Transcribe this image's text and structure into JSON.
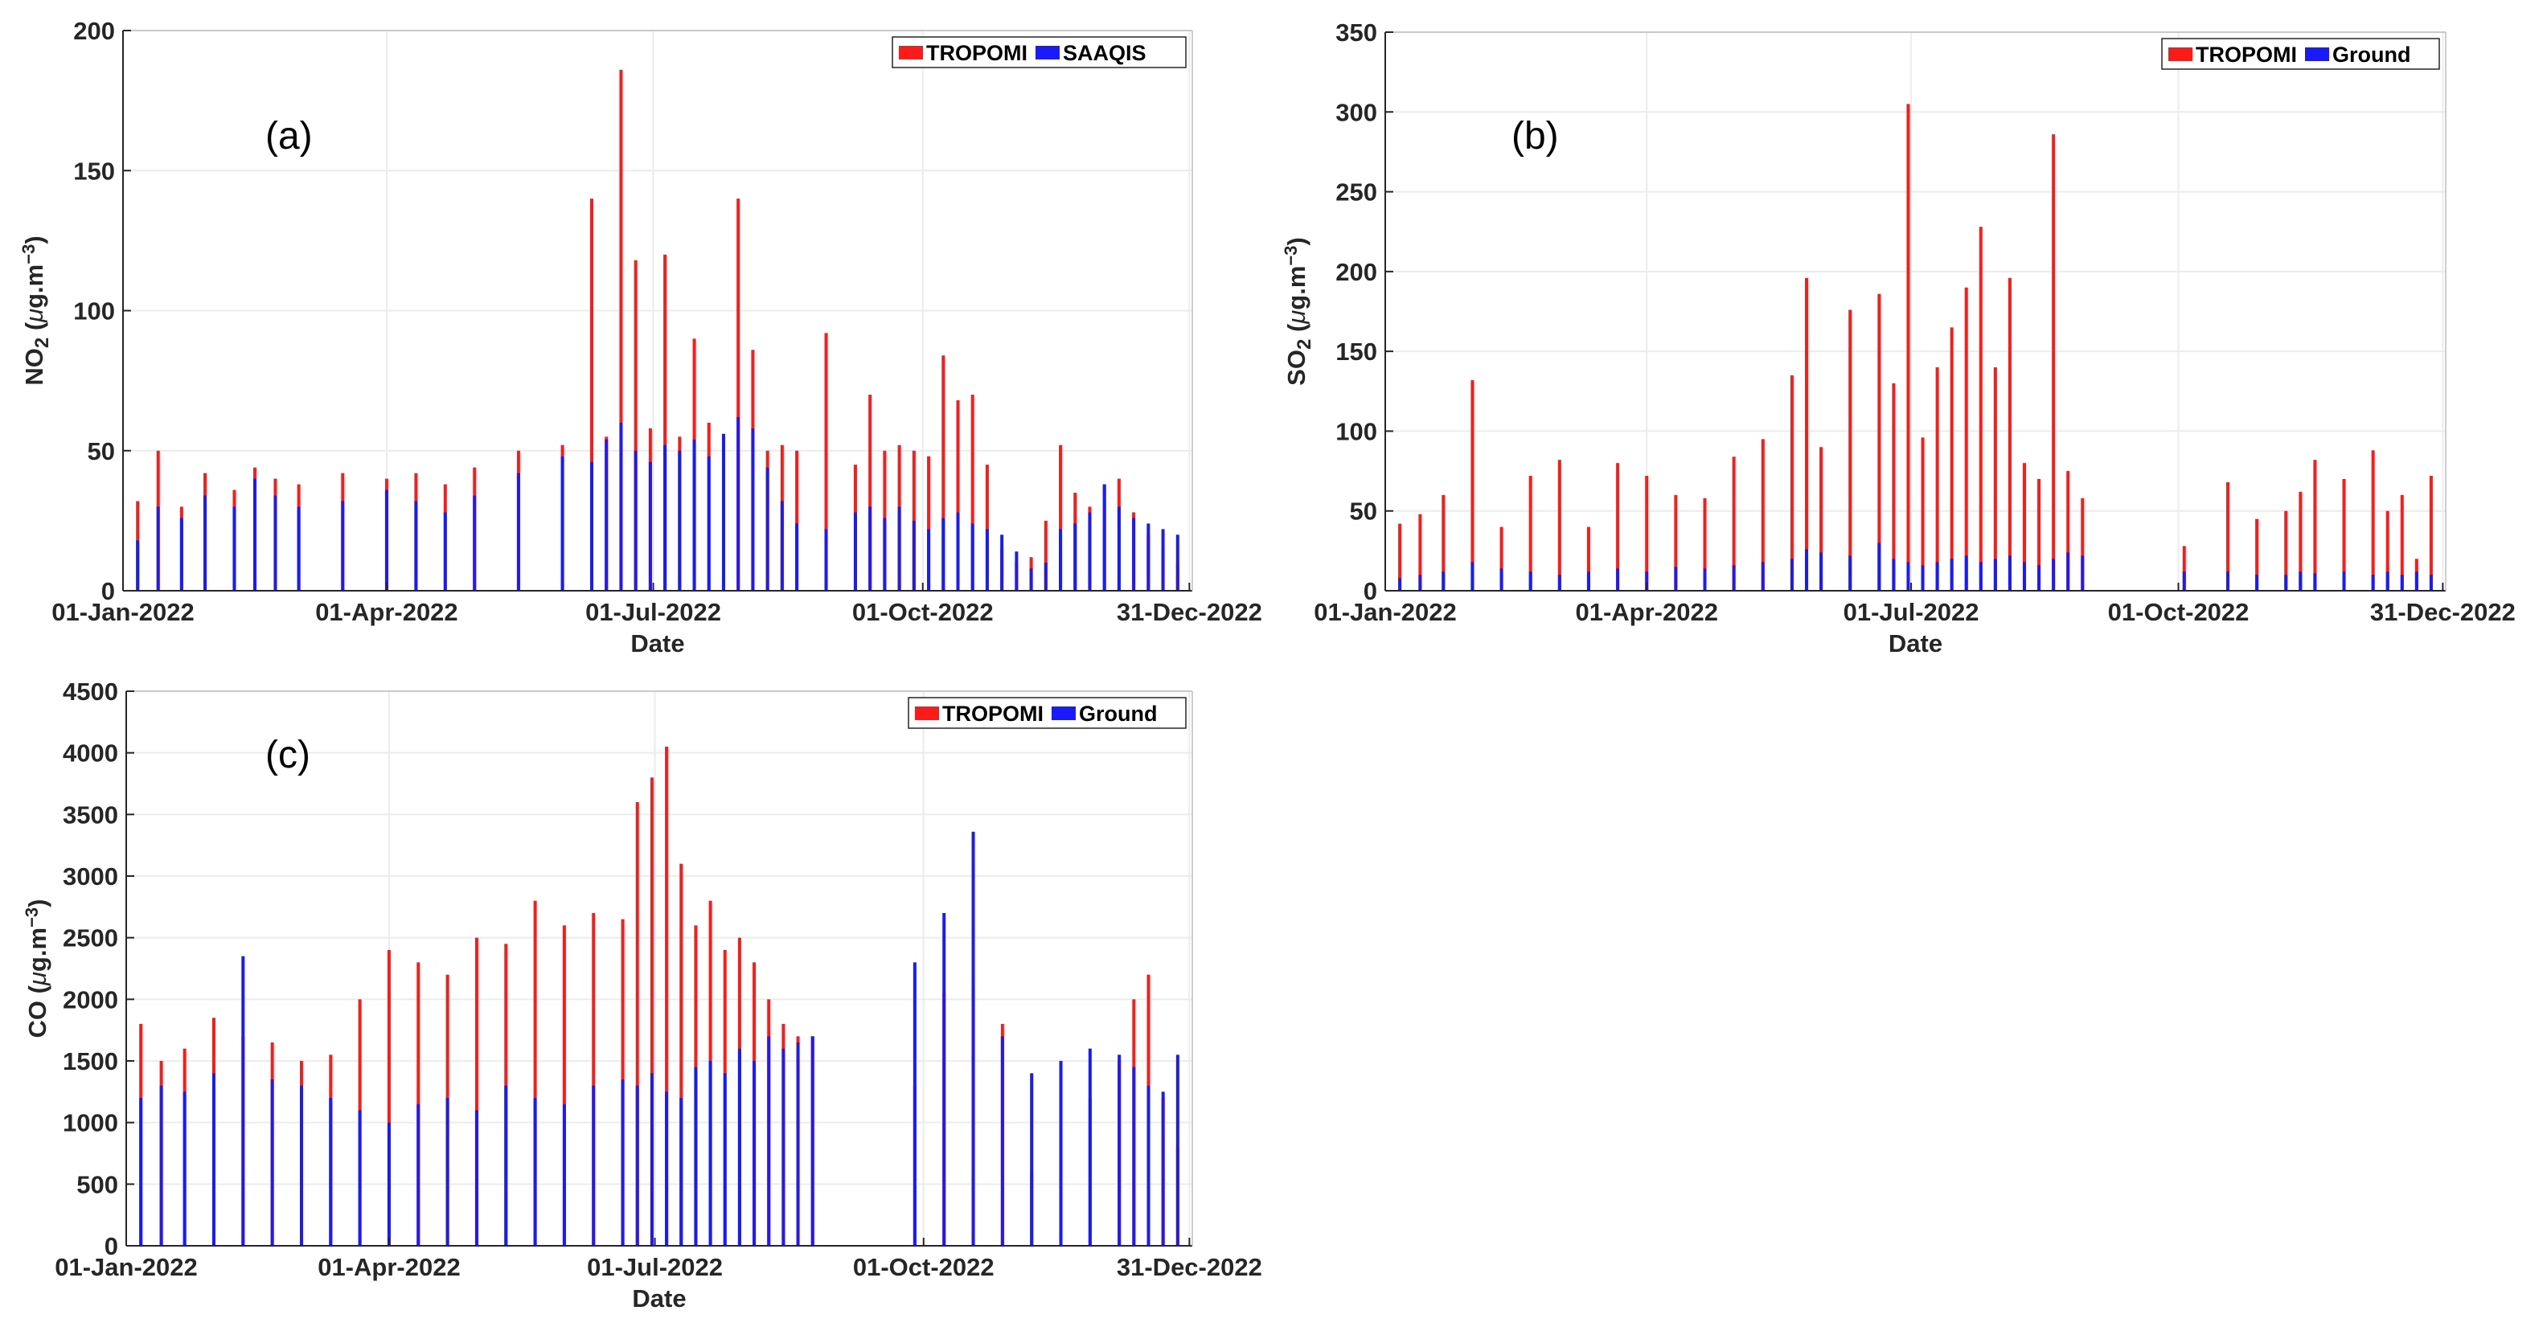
{
  "chart_data": [
    {
      "type": "bar",
      "panel_label": "(a)",
      "xlabel": "Date",
      "ylabel_main": "NO",
      "ylabel_sub": "2",
      "ylabel_unit_pre": " (",
      "ylabel_unit_mu": "μ",
      "ylabel_unit_mid": "g.m",
      "ylabel_unit_sup": "−3",
      "ylabel_unit_post": ")",
      "ylim": [
        0,
        200
      ],
      "yticks": [
        "0",
        "50",
        "100",
        "150",
        "200"
      ],
      "xticks": [
        "01-Jan-2022",
        "01-Apr-2022",
        "01-Jul-2022",
        "01-Oct-2022",
        "31-Dec-2022"
      ],
      "legend": [
        "TROPOMI",
        "SAAQIS"
      ],
      "series": [
        {
          "name": "TROPOMI",
          "color": "#ff1a1a",
          "x": [
            5,
            12,
            20,
            28,
            38,
            45,
            52,
            60,
            75,
            90,
            100,
            110,
            120,
            135,
            150,
            160,
            165,
            170,
            175,
            180,
            185,
            190,
            195,
            200,
            205,
            210,
            215,
            220,
            225,
            230,
            240,
            250,
            255,
            260,
            265,
            270,
            275,
            280,
            285,
            290,
            295,
            300,
            305,
            310,
            315,
            320,
            325,
            330,
            335,
            340,
            345,
            350,
            355,
            360
          ],
          "values": [
            32,
            50,
            30,
            42,
            36,
            44,
            40,
            38,
            42,
            40,
            42,
            38,
            44,
            50,
            52,
            140,
            55,
            186,
            118,
            58,
            120,
            55,
            90,
            60,
            56,
            140,
            86,
            50,
            52,
            50,
            92,
            45,
            70,
            50,
            52,
            50,
            48,
            84,
            68,
            70,
            45,
            15,
            10,
            12,
            25,
            52,
            35,
            30,
            38,
            40,
            28,
            20,
            15,
            10
          ]
        },
        {
          "name": "SAAQIS",
          "color": "#1a1aff",
          "x": [
            5,
            12,
            20,
            28,
            38,
            45,
            52,
            60,
            75,
            90,
            100,
            110,
            120,
            135,
            150,
            160,
            165,
            170,
            175,
            180,
            185,
            190,
            195,
            200,
            205,
            210,
            215,
            220,
            225,
            230,
            240,
            250,
            255,
            260,
            265,
            270,
            275,
            280,
            285,
            290,
            295,
            300,
            305,
            310,
            315,
            320,
            325,
            330,
            335,
            340,
            345,
            350,
            355,
            360
          ],
          "values": [
            18,
            30,
            26,
            34,
            30,
            40,
            34,
            30,
            32,
            36,
            32,
            28,
            34,
            42,
            48,
            46,
            54,
            60,
            50,
            46,
            52,
            50,
            54,
            48,
            56,
            62,
            58,
            44,
            32,
            24,
            22,
            28,
            30,
            26,
            30,
            25,
            22,
            26,
            28,
            24,
            22,
            20,
            14,
            8,
            10,
            22,
            24,
            28,
            38,
            30,
            26,
            24,
            22,
            20
          ]
        }
      ]
    },
    {
      "type": "bar",
      "panel_label": "(b)",
      "xlabel": "Date",
      "ylabel_main": "SO",
      "ylabel_sub": "2",
      "ylabel_unit_pre": " (",
      "ylabel_unit_mu": "μ",
      "ylabel_unit_mid": "g.m",
      "ylabel_unit_sup": "−3",
      "ylabel_unit_post": ")",
      "ylim": [
        0,
        350
      ],
      "yticks": [
        "0",
        "50",
        "100",
        "150",
        "200",
        "250",
        "300",
        "350"
      ],
      "xticks": [
        "01-Jan-2022",
        "01-Apr-2022",
        "01-Jul-2022",
        "01-Oct-2022",
        "31-Dec-2022"
      ],
      "legend": [
        "TROPOMI",
        "Ground"
      ],
      "series": [
        {
          "name": "TROPOMI",
          "color": "#ff1a1a",
          "x": [
            5,
            12,
            20,
            30,
            40,
            50,
            60,
            70,
            80,
            90,
            100,
            110,
            120,
            130,
            140,
            145,
            150,
            160,
            170,
            175,
            180,
            185,
            190,
            195,
            200,
            205,
            210,
            215,
            220,
            225,
            230,
            235,
            240,
            275,
            290,
            300,
            310,
            315,
            320,
            330,
            340,
            345,
            350,
            355,
            360
          ],
          "values": [
            42,
            48,
            60,
            132,
            40,
            72,
            82,
            40,
            80,
            72,
            60,
            58,
            84,
            95,
            135,
            196,
            90,
            176,
            186,
            130,
            305,
            96,
            140,
            165,
            190,
            228,
            140,
            196,
            80,
            70,
            286,
            75,
            58,
            28,
            68,
            45,
            50,
            62,
            82,
            70,
            88,
            50,
            60,
            20,
            72
          ]
        },
        {
          "name": "Ground",
          "color": "#1a1aff",
          "x": [
            5,
            12,
            20,
            30,
            40,
            50,
            60,
            70,
            80,
            90,
            100,
            110,
            120,
            130,
            140,
            145,
            150,
            160,
            170,
            175,
            180,
            185,
            190,
            195,
            200,
            205,
            210,
            215,
            220,
            225,
            230,
            235,
            240,
            275,
            290,
            300,
            310,
            315,
            320,
            330,
            340,
            345,
            350,
            355,
            360
          ],
          "values": [
            8,
            10,
            12,
            18,
            14,
            12,
            10,
            12,
            14,
            12,
            15,
            14,
            16,
            18,
            20,
            26,
            24,
            22,
            30,
            20,
            18,
            16,
            18,
            20,
            22,
            18,
            20,
            22,
            18,
            16,
            20,
            24,
            22,
            12,
            12,
            10,
            10,
            12,
            11,
            12,
            10,
            12,
            10,
            12,
            10
          ]
        }
      ]
    },
    {
      "type": "bar",
      "panel_label": "(c)",
      "xlabel": "Date",
      "ylabel_main": "CO",
      "ylabel_sub": "",
      "ylabel_unit_pre": " (",
      "ylabel_unit_mu": "μ",
      "ylabel_unit_mid": "g.m",
      "ylabel_unit_sup": "−3",
      "ylabel_unit_post": ")",
      "ylim": [
        0,
        4500
      ],
      "yticks": [
        "0",
        "500",
        "1000",
        "1500",
        "2000",
        "2500",
        "3000",
        "3500",
        "4000",
        "4500"
      ],
      "xticks": [
        "01-Jan-2022",
        "01-Apr-2022",
        "01-Jul-2022",
        "01-Oct-2022",
        "31-Dec-2022"
      ],
      "legend": [
        "TROPOMI",
        "Ground"
      ],
      "series": [
        {
          "name": "TROPOMI",
          "color": "#ff1a1a",
          "x": [
            5,
            12,
            20,
            30,
            40,
            50,
            60,
            70,
            80,
            90,
            100,
            110,
            120,
            130,
            140,
            150,
            160,
            170,
            175,
            180,
            185,
            190,
            195,
            200,
            205,
            210,
            215,
            220,
            225,
            230,
            235,
            270,
            280,
            290,
            300,
            310,
            320,
            330,
            340,
            345,
            350,
            355,
            360
          ],
          "values": [
            1800,
            1500,
            1600,
            1850,
            1700,
            1650,
            1500,
            1550,
            2000,
            2400,
            2300,
            2200,
            2500,
            2450,
            2800,
            2600,
            2700,
            2650,
            3600,
            3800,
            4050,
            3100,
            2600,
            2800,
            2400,
            2500,
            2300,
            2000,
            1800,
            1700,
            1700,
            1300,
            2050,
            2100,
            1800,
            600,
            700,
            1200,
            1500,
            2000,
            2200,
            1200,
            800
          ]
        },
        {
          "name": "Ground",
          "color": "#1a1aff",
          "x": [
            5,
            12,
            20,
            30,
            40,
            50,
            60,
            70,
            80,
            90,
            100,
            110,
            120,
            130,
            140,
            150,
            160,
            170,
            175,
            180,
            185,
            190,
            195,
            200,
            205,
            210,
            215,
            220,
            225,
            230,
            235,
            270,
            280,
            290,
            300,
            310,
            320,
            330,
            340,
            345,
            350,
            355,
            360
          ],
          "values": [
            1200,
            1300,
            1250,
            1400,
            2350,
            1350,
            1300,
            1200,
            1100,
            1000,
            1150,
            1200,
            1100,
            1300,
            1200,
            1150,
            1300,
            1350,
            1300,
            1400,
            1250,
            1200,
            1450,
            1500,
            1400,
            1600,
            1500,
            1700,
            1600,
            1650,
            1700,
            2300,
            2700,
            3360,
            1700,
            1400,
            1500,
            1600,
            1550,
            1450,
            1300,
            1250,
            1550
          ]
        }
      ]
    }
  ]
}
